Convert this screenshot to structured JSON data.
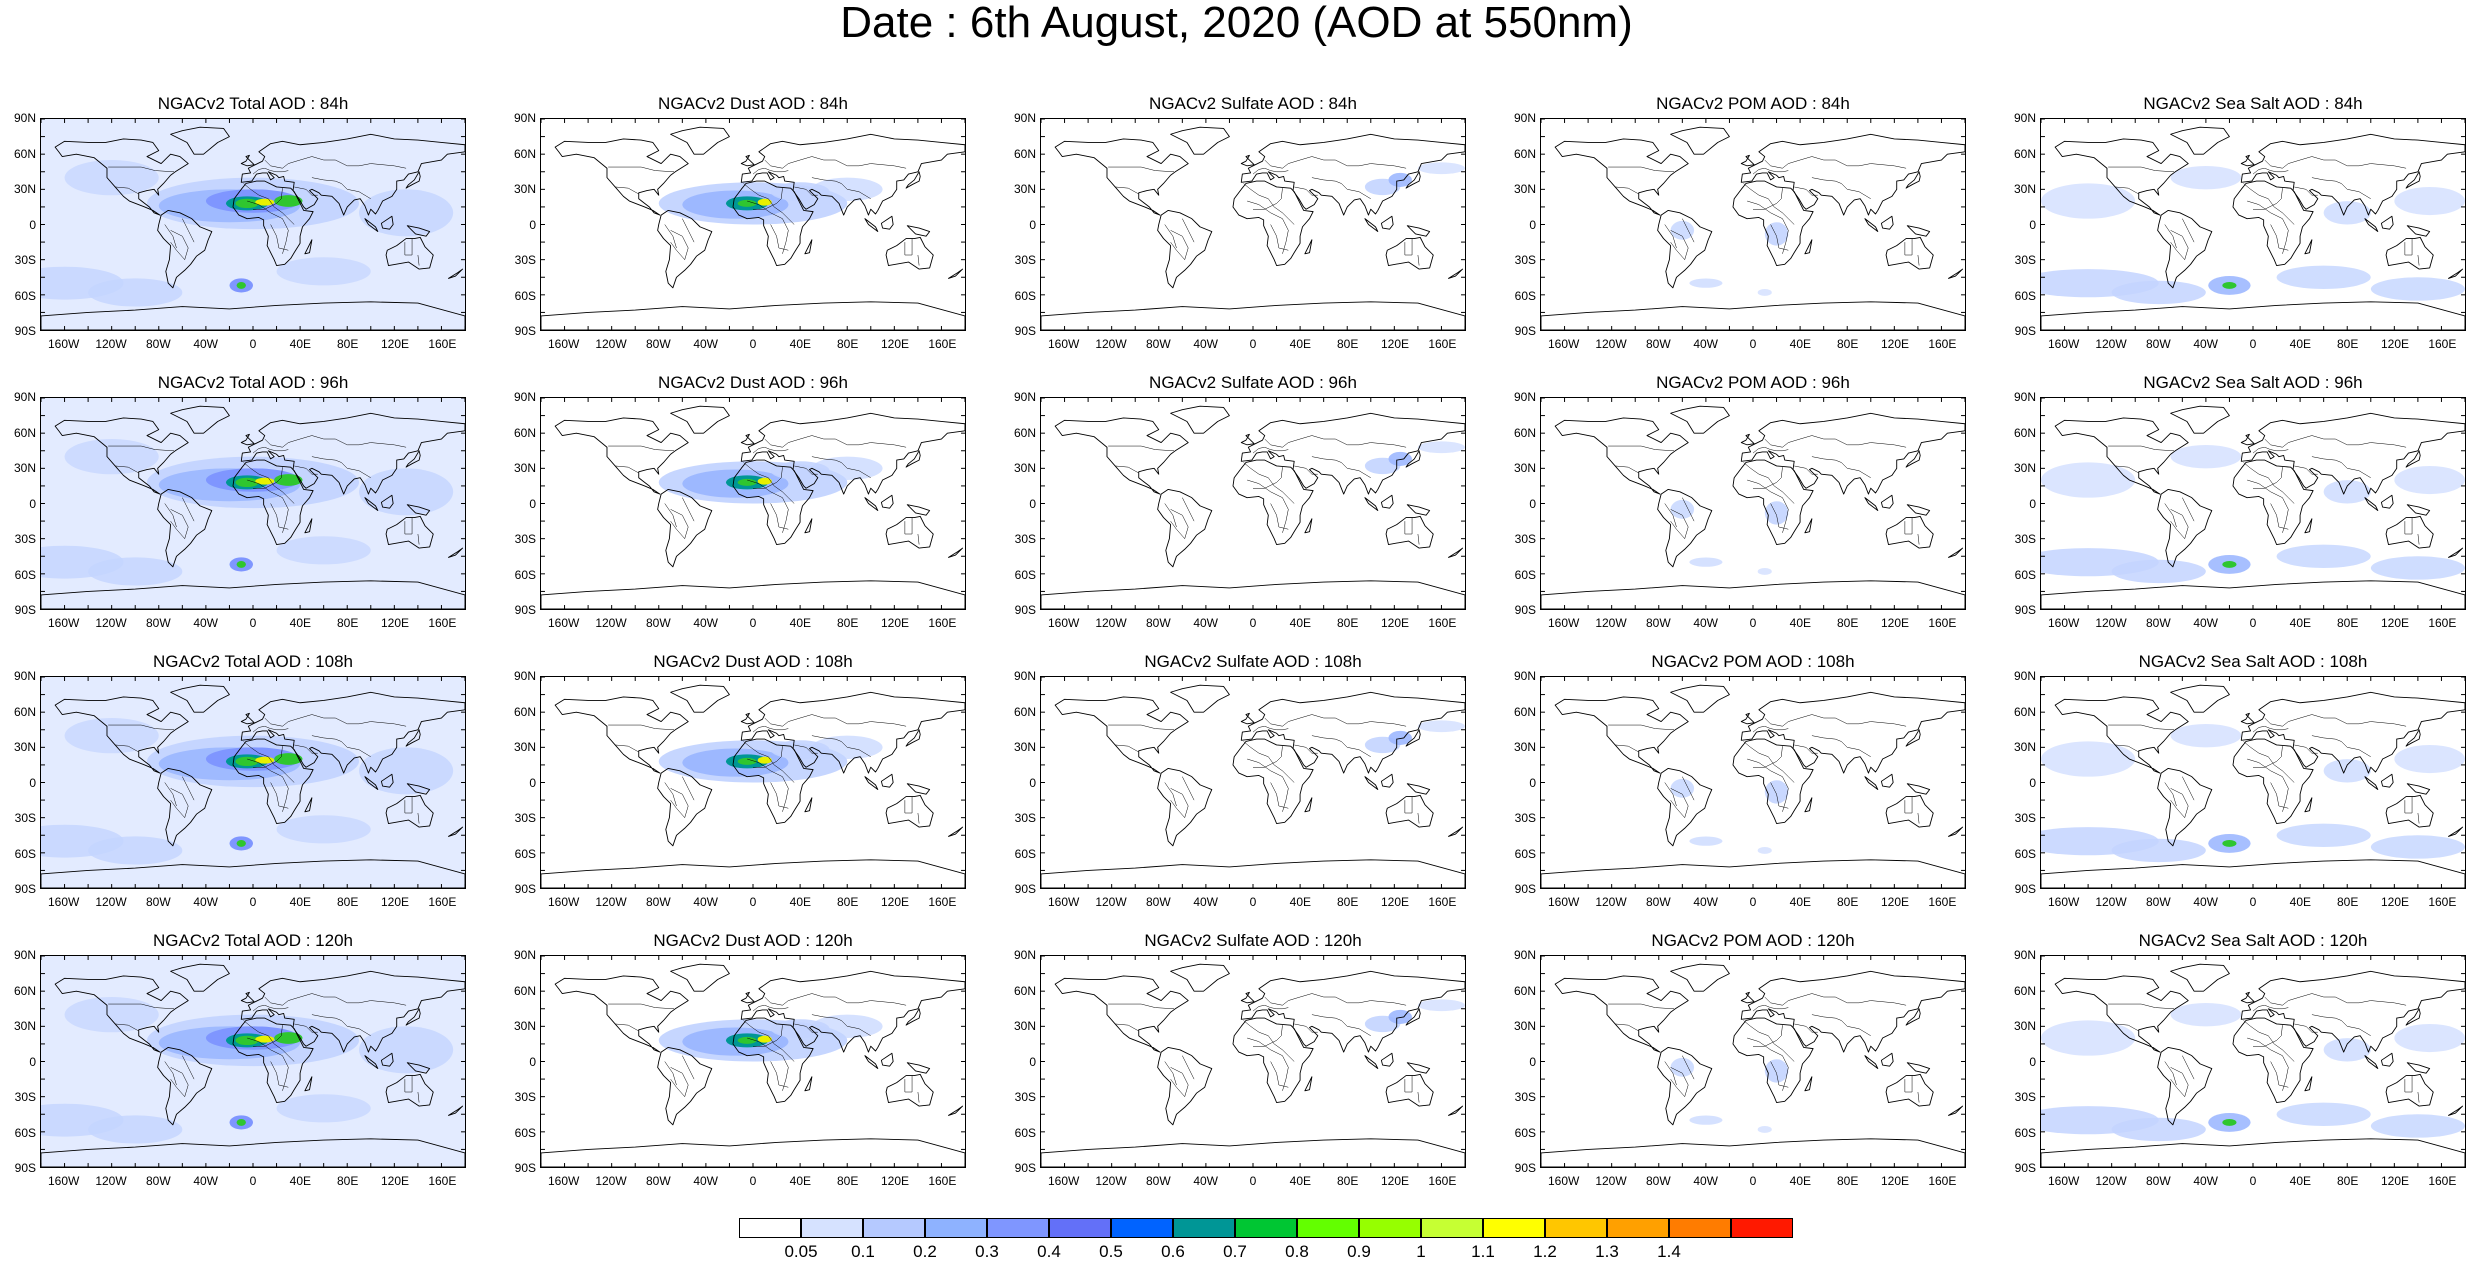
{
  "title": "Date : 6th August, 2020 (AOD at 550nm)",
  "lat_labels": [
    "90N",
    "60N",
    "30N",
    "0",
    "30S",
    "60S",
    "90S"
  ],
  "lon_labels": [
    "160W",
    "120W",
    "80W",
    "40W",
    "0",
    "40E",
    "80E",
    "120E",
    "160E"
  ],
  "lon_label_values": [
    -160,
    -120,
    -80,
    -40,
    0,
    40,
    80,
    120,
    160
  ],
  "panels": [
    [
      {
        "title": "NGACv2 Total AOD : 84h",
        "variable": "total"
      },
      {
        "title": "NGACv2 Dust AOD : 84h",
        "variable": "dust"
      },
      {
        "title": "NGACv2 Sulfate AOD : 84h",
        "variable": "sulfate"
      },
      {
        "title": "NGACv2 POM AOD : 84h",
        "variable": "pom"
      },
      {
        "title": "NGACv2 Sea Salt AOD : 84h",
        "variable": "seasalt"
      }
    ],
    [
      {
        "title": "NGACv2 Total AOD : 96h",
        "variable": "total"
      },
      {
        "title": "NGACv2 Dust AOD : 96h",
        "variable": "dust"
      },
      {
        "title": "NGACv2 Sulfate AOD : 96h",
        "variable": "sulfate"
      },
      {
        "title": "NGACv2 POM AOD : 96h",
        "variable": "pom"
      },
      {
        "title": "NGACv2 Sea Salt AOD : 96h",
        "variable": "seasalt"
      }
    ],
    [
      {
        "title": "NGACv2 Total AOD : 108h",
        "variable": "total"
      },
      {
        "title": "NGACv2 Dust AOD : 108h",
        "variable": "dust"
      },
      {
        "title": "NGACv2 Sulfate AOD : 108h",
        "variable": "sulfate"
      },
      {
        "title": "NGACv2 POM AOD : 108h",
        "variable": "pom"
      },
      {
        "title": "NGACv2 Sea Salt AOD : 108h",
        "variable": "seasalt"
      }
    ],
    [
      {
        "title": "NGACv2 Total AOD : 120h",
        "variable": "total"
      },
      {
        "title": "NGACv2 Dust AOD : 120h",
        "variable": "dust"
      },
      {
        "title": "NGACv2 Sulfate AOD : 120h",
        "variable": "sulfate"
      },
      {
        "title": "NGACv2 POM AOD : 120h",
        "variable": "pom"
      },
      {
        "title": "NGACv2 Sea Salt  AOD : 120h",
        "variable": "seasalt"
      }
    ]
  ],
  "colorbar": {
    "labels": [
      "0.05",
      "0.1",
      "0.2",
      "0.3",
      "0.4",
      "0.5",
      "0.6",
      "0.7",
      "0.8",
      "0.9",
      "1",
      "1.1",
      "1.2",
      "1.3",
      "1.4"
    ],
    "colors": [
      "#ffffff",
      "#d6e2ff",
      "#b5c9ff",
      "#8eb2ff",
      "#7f96ff",
      "#6370f8",
      "#0063ff",
      "#009696",
      "#00c633",
      "#63ff00",
      "#96ff00",
      "#c6ff33",
      "#ffff00",
      "#ffc600",
      "#ffa000",
      "#ff7c00",
      "#ff1900"
    ]
  },
  "fill_colors": {
    "background_haze": "#e3ebff",
    "light": "#c3d4ff",
    "medium": "#9db8ff",
    "strong": "#7f96ff",
    "very_strong": "#3a5cf0",
    "teal": "#009696",
    "green": "#2fc62f",
    "yellow": "#e8f000"
  },
  "coast_color": "#000000"
}
